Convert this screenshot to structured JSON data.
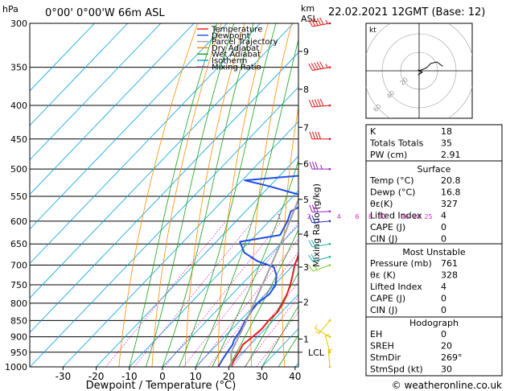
{
  "header": {
    "hpa_unit": "hPa",
    "location": "0°00' 0°00'W 66m ASL",
    "km_unit": "km",
    "asl_unit": "ASL",
    "datetime": "22.02.2021 12GMT (Base: 12)"
  },
  "legend": {
    "items": [
      {
        "label": "Temperature",
        "color": "#e8191b"
      },
      {
        "label": "Dewpoint",
        "color": "#1f4ee0"
      },
      {
        "label": "Parcel Trajectory",
        "color": "#a0a0a0"
      },
      {
        "label": "Dry Adiabat",
        "color": "#ff8c00"
      },
      {
        "label": "Wet Adiabat",
        "color": "#16a016"
      },
      {
        "label": "Isotherm",
        "color": "#00a0e0"
      },
      {
        "label": "Mixing Ratio",
        "color": "#e020c0"
      }
    ]
  },
  "chart_data": {
    "type": "line",
    "title": "",
    "xlabel": "Dewpoint / Temperature (°C)",
    "ylabel": "hPa",
    "ylabel_right": "Mixing Ratio (g/kg)",
    "xlim": [
      -35,
      40
    ],
    "ylim": [
      1000,
      300
    ],
    "x_ticks": [
      -30,
      -20,
      -10,
      0,
      10,
      20,
      30,
      40
    ],
    "pressure_ticks": [
      300,
      350,
      400,
      450,
      500,
      550,
      600,
      650,
      700,
      750,
      800,
      850,
      900,
      950,
      1000
    ],
    "km_ticks": [
      {
        "label": "1",
        "p": 907
      },
      {
        "label": "2",
        "p": 797
      },
      {
        "label": "3",
        "p": 705
      },
      {
        "label": "4",
        "p": 628
      },
      {
        "label": "5",
        "p": 556
      },
      {
        "label": "6",
        "p": 491
      },
      {
        "label": "7",
        "p": 432
      },
      {
        "label": "8",
        "p": 378
      },
      {
        "label": "9",
        "p": 331
      }
    ],
    "lcl": {
      "label": "LCL",
      "p": 950
    },
    "mixing_ratio_labels": [
      {
        "label": "1",
        "t": -7,
        "color": "#e020c0"
      },
      {
        "label": "2",
        "t": 2,
        "color": "#e020c0"
      },
      {
        "label": "4",
        "t": 11,
        "color": "#e020c0"
      },
      {
        "label": "6",
        "t": 16.5,
        "color": "#e020c0"
      },
      {
        "label": "8",
        "t": 20.5,
        "color": "#e020c0"
      },
      {
        "label": "10",
        "t": 24,
        "color": "#e020c0"
      },
      {
        "label": "16",
        "t": 31,
        "color": "#e020c0"
      },
      {
        "label": "20",
        "t": 34.5,
        "color": "#e020c0"
      },
      {
        "label": "25",
        "t": 38,
        "color": "#e020c0"
      }
    ],
    "series": [
      {
        "name": "Temperature",
        "color": "#e8191b",
        "points": [
          [
            1000,
            20.8
          ],
          [
            975,
            19.5
          ],
          [
            950,
            18.8
          ],
          [
            925,
            17.8
          ],
          [
            900,
            18.5
          ],
          [
            875,
            19.0
          ],
          [
            850,
            18.6
          ],
          [
            825,
            18.8
          ],
          [
            800,
            17.9
          ],
          [
            775,
            16.5
          ],
          [
            750,
            14.8
          ],
          [
            725,
            12.7
          ],
          [
            700,
            10.4
          ],
          [
            675,
            8.6
          ],
          [
            650,
            7.4
          ],
          [
            625,
            5.4
          ],
          [
            600,
            2.6
          ],
          [
            575,
            -0.6
          ],
          [
            550,
            -3.6
          ],
          [
            525,
            -6.6
          ],
          [
            500,
            -9.2
          ],
          [
            475,
            -12.7
          ],
          [
            450,
            -15.4
          ],
          [
            425,
            -19.4
          ],
          [
            400,
            -23.7
          ],
          [
            375,
            -27.8
          ],
          [
            350,
            -32.4
          ],
          [
            325,
            -37.2
          ],
          [
            300,
            -42.1
          ]
        ]
      },
      {
        "name": "Dewpoint",
        "color": "#1f4ee0",
        "points": [
          [
            1000,
            16.8
          ],
          [
            975,
            16.0
          ],
          [
            950,
            15.3
          ],
          [
            925,
            14.7
          ],
          [
            910,
            13.8
          ],
          [
            880,
            12.9
          ],
          [
            850,
            11.6
          ],
          [
            820,
            10.6
          ],
          [
            800,
            10.2
          ],
          [
            775,
            11.2
          ],
          [
            750,
            10.4
          ],
          [
            725,
            7.8
          ],
          [
            705,
            4.7
          ],
          [
            690,
            -2.1
          ],
          [
            670,
            -8.4
          ],
          [
            645,
            -12.9
          ],
          [
            630,
            -2.7
          ],
          [
            600,
            -4.5
          ],
          [
            580,
            -6.3
          ],
          [
            555,
            -2.9
          ],
          [
            530,
            -20.9
          ],
          [
            520,
            -29.2
          ],
          [
            508,
            -6.9
          ],
          [
            495,
            -5.8
          ],
          [
            470,
            -17.4
          ],
          [
            448,
            -18.4
          ],
          [
            438,
            -6.8
          ],
          [
            420,
            -26.1
          ],
          [
            400,
            -25.7
          ],
          [
            385,
            -24.6
          ],
          [
            360,
            -26.6
          ],
          [
            345,
            -29.6
          ],
          [
            315,
            -37.9
          ],
          [
            302,
            -35.9
          ]
        ]
      },
      {
        "name": "Parcel Trajectory",
        "color": "#a0a0a0",
        "points": [
          [
            1000,
            20.8
          ],
          [
            950,
            16.5
          ],
          [
            900,
            14.3
          ],
          [
            850,
            11.9
          ],
          [
            800,
            9.2
          ],
          [
            750,
            6.4
          ],
          [
            700,
            3.3
          ],
          [
            650,
            0.0
          ],
          [
            600,
            -3.8
          ],
          [
            550,
            -8.0
          ],
          [
            500,
            -12.9
          ],
          [
            450,
            -18.7
          ],
          [
            400,
            -25.6
          ],
          [
            350,
            -33.7
          ],
          [
            300,
            -43.5
          ]
        ]
      }
    ],
    "isotherms_every": 10,
    "dry_adiabats_theta_k": [
      260,
      270,
      280,
      290,
      300,
      310,
      320,
      330,
      340,
      350,
      360,
      370,
      380,
      390,
      400,
      410,
      420,
      430,
      440
    ],
    "wet_adiabats_start_c": [
      -10,
      -5,
      0,
      5,
      10,
      15,
      20,
      25,
      30,
      35
    ],
    "mixing_ratios_gkg": [
      1,
      2,
      4,
      6,
      8,
      10,
      16,
      20,
      25
    ],
    "winds": [
      {
        "p": 1000,
        "dir": 355,
        "spd": 5,
        "color": "#e8c000"
      },
      {
        "p": 950,
        "dir": 345,
        "spd": 5,
        "color": "#e8c000"
      },
      {
        "p": 900,
        "dir": 300,
        "spd": 5,
        "color": "#e8c000"
      },
      {
        "p": 850,
        "dir": 220,
        "spd": 5,
        "color": "#e8c000"
      },
      {
        "p": 700,
        "dir": 250,
        "spd": 15,
        "color": "#80d020"
      },
      {
        "p": 680,
        "dir": 255,
        "spd": 20,
        "color": "#20b0a0"
      },
      {
        "p": 650,
        "dir": 260,
        "spd": 20,
        "color": "#20b0a0"
      },
      {
        "p": 600,
        "dir": 265,
        "spd": 25,
        "color": "#3030c0"
      },
      {
        "p": 580,
        "dir": 268,
        "spd": 30,
        "color": "#9020c0"
      },
      {
        "p": 500,
        "dir": 270,
        "spd": 35,
        "color": "#9020c0"
      },
      {
        "p": 450,
        "dir": 270,
        "spd": 40,
        "color": "#e01010"
      },
      {
        "p": 400,
        "dir": 265,
        "spd": 50,
        "color": "#e01010"
      },
      {
        "p": 350,
        "dir": 260,
        "spd": 55,
        "color": "#e01010"
      },
      {
        "p": 300,
        "dir": 260,
        "spd": 55,
        "color": "#e01010"
      }
    ]
  },
  "hodograph": {
    "unit": "kt",
    "ring_labels": [
      "20",
      "40",
      "60"
    ],
    "points_kt": [
      [
        0,
        0
      ],
      [
        5,
        2
      ],
      [
        8,
        5
      ],
      [
        12,
        6
      ],
      [
        16,
        3
      ]
    ],
    "storm_motion_kt": [
      2,
      -1
    ]
  },
  "indices": {
    "rows": [
      {
        "label": "K",
        "value": "18"
      },
      {
        "label": "Totals Totals",
        "value": "35"
      },
      {
        "label": "PW (cm)",
        "value": "2.91"
      }
    ]
  },
  "surface": {
    "title": "Surface",
    "rows": [
      {
        "label": "Temp (°C)",
        "value": "20.8"
      },
      {
        "label": "Dewp (°C)",
        "value": "16.8"
      },
      {
        "label": "θε(K)",
        "value": "327"
      },
      {
        "label": "Lifted Index",
        "value": "4"
      },
      {
        "label": "CAPE (J)",
        "value": "0"
      },
      {
        "label": "CIN (J)",
        "value": "0"
      }
    ]
  },
  "most_unstable": {
    "title": "Most Unstable",
    "rows": [
      {
        "label": "Pressure (mb)",
        "value": "761"
      },
      {
        "label": "θε (K)",
        "value": "328"
      },
      {
        "label": "Lifted Index",
        "value": "4"
      },
      {
        "label": "CAPE (J)",
        "value": "0"
      },
      {
        "label": "CIN (J)",
        "value": "0"
      }
    ]
  },
  "hodograph_table": {
    "title": "Hodograph",
    "rows": [
      {
        "label": "EH",
        "value": "0"
      },
      {
        "label": "SREH",
        "value": "20"
      },
      {
        "label": "StmDir",
        "value": "269°"
      },
      {
        "label": "StmSpd (kt)",
        "value": "30"
      }
    ]
  },
  "footer": {
    "copyright": "© weatheronline.co.uk"
  }
}
